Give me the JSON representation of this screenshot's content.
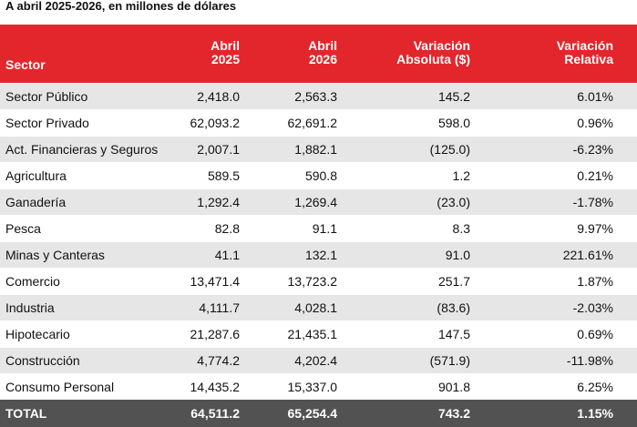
{
  "subtitle": "A abril 2025-2026, en millones de dólares",
  "headers": {
    "sector": "Sector",
    "col1_line1": "Abril",
    "col1_line2": "2025",
    "col2_line1": "Abril",
    "col2_line2": "2026",
    "col3_line1": "Variación",
    "col3_line2": "Absoluta ($)",
    "col4_line1": "Variación",
    "col4_line2": "Relativa"
  },
  "rows": [
    {
      "sector": "Sector Público",
      "abril_2025": "2,418.0",
      "abril_2026": "2,563.3",
      "var_abs": "145.2",
      "var_rel": "6.01%"
    },
    {
      "sector": "Sector Privado",
      "abril_2025": "62,093.2",
      "abril_2026": "62,691.2",
      "var_abs": "598.0",
      "var_rel": "0.96%"
    },
    {
      "sector": "Act. Financieras y Seguros",
      "abril_2025": "2,007.1",
      "abril_2026": "1,882.1",
      "var_abs": "(125.0)",
      "var_rel": "-6.23%"
    },
    {
      "sector": "Agricultura",
      "abril_2025": "589.5",
      "abril_2026": "590.8",
      "var_abs": "1.2",
      "var_rel": "0.21%"
    },
    {
      "sector": "Ganadería",
      "abril_2025": "1,292.4",
      "abril_2026": "1,269.4",
      "var_abs": "(23.0)",
      "var_rel": "-1.78%"
    },
    {
      "sector": "Pesca",
      "abril_2025": "82.8",
      "abril_2026": "91.1",
      "var_abs": "8.3",
      "var_rel": "9.97%"
    },
    {
      "sector": "Minas y Canteras",
      "abril_2025": "41.1",
      "abril_2026": "132.1",
      "var_abs": "91.0",
      "var_rel": "221.61%"
    },
    {
      "sector": "Comercio",
      "abril_2025": "13,471.4",
      "abril_2026": "13,723.2",
      "var_abs": "251.7",
      "var_rel": "1.87%"
    },
    {
      "sector": "Industria",
      "abril_2025": "4,111.7",
      "abril_2026": "4,028.1",
      "var_abs": "(83.6)",
      "var_rel": "-2.03%"
    },
    {
      "sector": "Hipotecario",
      "abril_2025": "21,287.6",
      "abril_2026": "21,435.1",
      "var_abs": "147.5",
      "var_rel": "0.69%"
    },
    {
      "sector": "Construcción",
      "abril_2025": "4,774.2",
      "abril_2026": "4,202.4",
      "var_abs": "(571.9)",
      "var_rel": "-11.98%"
    },
    {
      "sector": "Consumo Personal",
      "abril_2025": "14,435.2",
      "abril_2026": "15,337.0",
      "var_abs": "901.8",
      "var_rel": "6.25%"
    }
  ],
  "total": {
    "label": "TOTAL",
    "abril_2025": "64,511.2",
    "abril_2026": "65,254.4",
    "var_abs": "743.2",
    "var_rel": "1.15%"
  },
  "colors": {
    "header_bg": "#e3262c",
    "stripe_bg": "#e6e6e6",
    "total_bg": "#525252"
  }
}
